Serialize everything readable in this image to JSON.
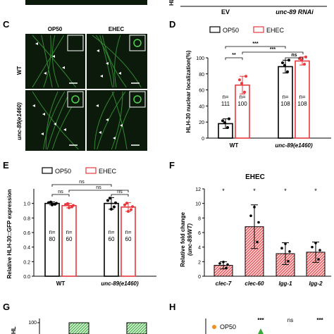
{
  "colors": {
    "op50": "#000000",
    "ehec": "#e8383d",
    "micro_bg": "#0b1a0b",
    "micro_fg": "#4fd14f",
    "hatch": "#e8383d",
    "green_hatch": "#38a838",
    "orange": "#f09020"
  },
  "panel_letters": {
    "c": "C",
    "d": "D",
    "e": "E",
    "f": "F",
    "g": "G",
    "h": "H"
  },
  "top_strip": {
    "y_label": "HL",
    "x_ev": "EV",
    "x_rnai": "unc-89 RNAi"
  },
  "panel_c": {
    "col_op50": "OP50",
    "col_ehec": "EHEC",
    "row_wt": "WT",
    "row_mut": "unc-89(e1460)"
  },
  "panel_d": {
    "legend": [
      "OP50",
      "EHEC"
    ],
    "ylabel": "HLH-30 nuclear localization(%)",
    "yticks": [
      "0",
      "20",
      "40",
      "60",
      "80",
      "100"
    ],
    "sig_top": "***",
    "sig_mid": "***",
    "sig_right": "**",
    "sig_ns": "ns",
    "n_prefix": "n=",
    "groups": [
      "WT",
      "unc-89(e1460)"
    ],
    "chart_data": {
      "type": "bar",
      "ylim": [
        0,
        100
      ],
      "categories": [
        "WT",
        "unc-89(e1460)"
      ],
      "series": [
        {
          "name": "OP50",
          "values": [
            18,
            89
          ],
          "n": [
            "111",
            "108"
          ]
        },
        {
          "name": "EHEC",
          "values": [
            66,
            96
          ],
          "n": [
            "100",
            "108"
          ]
        }
      ]
    }
  },
  "panel_e": {
    "legend": [
      "OP50",
      "EHEC"
    ],
    "ylabel": "Relative HLH-30::GFP expression",
    "yticks": [
      "0.0",
      "0.2",
      "0.4",
      "0.6",
      "0.8",
      "1.0"
    ],
    "sig": [
      "ns",
      "ns",
      "ns",
      "ns"
    ],
    "n_prefix": "n=",
    "groups": [
      "WT",
      "unc-89(e1460)"
    ],
    "chart_data": {
      "type": "bar",
      "ylim": [
        0,
        1.2
      ],
      "categories": [
        "WT",
        "unc-89(e1460)"
      ],
      "series": [
        {
          "name": "OP50",
          "values": [
            1.0,
            1.0
          ],
          "n": [
            "80",
            "60"
          ]
        },
        {
          "name": "EHEC",
          "values": [
            0.97,
            0.95
          ],
          "n": [
            "60",
            "60"
          ]
        }
      ]
    }
  },
  "panel_f": {
    "title": "EHEC",
    "ylabel": "Relative fold change",
    "ylabel2": "(unc-89/WT)",
    "yticks": [
      "0",
      "2",
      "4",
      "6",
      "8",
      "10",
      "12"
    ],
    "stars": [
      "*",
      "*",
      "*",
      "*"
    ],
    "chart_data": {
      "type": "bar",
      "ylim": [
        0,
        12
      ],
      "categories": [
        "clec-7",
        "clec-60",
        "lgg-1",
        "lgg-2"
      ],
      "values": [
        1.5,
        6.8,
        3.1,
        3.3
      ]
    }
  },
  "panel_g": {
    "ytick": "100",
    "yprefix": "HL"
  },
  "panel_h": {
    "legend": "OP50",
    "sig": [
      "***",
      "ns",
      "***"
    ]
  }
}
